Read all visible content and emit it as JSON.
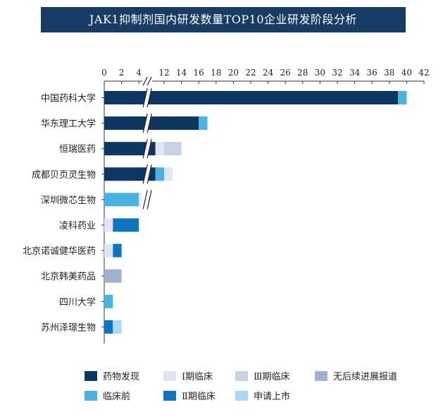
{
  "chart_data": {
    "type": "bar",
    "orientation": "horizontal",
    "stacked": true,
    "title": "JAK1抑制剂国内研发数量TOP10企业研发阶段分析",
    "axis_break": {
      "from": 4,
      "to": 11
    },
    "x_ticks": [
      0,
      2,
      4,
      12,
      14,
      16,
      18,
      20,
      22,
      24,
      26,
      28,
      30,
      32,
      34,
      36,
      38,
      40,
      42
    ],
    "xlim": [
      0,
      42
    ],
    "categories": [
      "中国药科大学",
      "华东理工大学",
      "恒瑞医药",
      "成都贝页灵生物",
      "深圳微芯生物",
      "凌科药业",
      "北京诺诚健华医药",
      "北京韩美药品",
      "四川大学",
      "苏州泽璟生物"
    ],
    "series": [
      {
        "name": "药物发现",
        "color": "#0d3761",
        "values": [
          40,
          17,
          12,
          12,
          0,
          0,
          0,
          0,
          0,
          0
        ]
      },
      {
        "name": "临床前",
        "color": "#47b3e3",
        "values": [
          1,
          1,
          0,
          1,
          4,
          0,
          0,
          0,
          1,
          0
        ]
      },
      {
        "name": "Ⅰ期临床",
        "color": "#dfe6f1",
        "values": [
          0,
          0,
          1,
          1,
          1,
          1,
          1,
          0,
          0,
          0
        ]
      },
      {
        "name": "Ⅱ期临床",
        "color": "#0c75c2",
        "values": [
          0,
          0,
          0,
          0,
          0,
          3,
          1,
          0,
          0,
          1
        ]
      },
      {
        "name": "Ⅲ期临床",
        "color": "#c6d3e5",
        "values": [
          0,
          0,
          2,
          0,
          0,
          0,
          0,
          0,
          0,
          0
        ]
      },
      {
        "name": "申请上市",
        "color": "#a9daf5",
        "values": [
          0,
          0,
          0,
          0,
          0,
          0,
          0,
          0,
          0,
          1
        ]
      },
      {
        "name": "无后续进展报道",
        "color": "#9eb2cd",
        "values": [
          0,
          0,
          0,
          0,
          0,
          0,
          0,
          2,
          0,
          0
        ]
      }
    ],
    "legend": [
      {
        "name": "药物发现",
        "color": "#0d3761"
      },
      {
        "name": "Ⅰ期临床",
        "color": "#dfe6f1"
      },
      {
        "name": "Ⅲ期临床",
        "color": "#c6d3e5"
      },
      {
        "name": "无后续进展报道",
        "color": "#9eb2cd"
      },
      {
        "name": "临床前",
        "color": "#47b3e3"
      },
      {
        "name": "Ⅱ期临床",
        "color": "#0c75c2"
      },
      {
        "name": "申请上市",
        "color": "#a9daf5"
      }
    ],
    "legend_position": "bottom"
  }
}
